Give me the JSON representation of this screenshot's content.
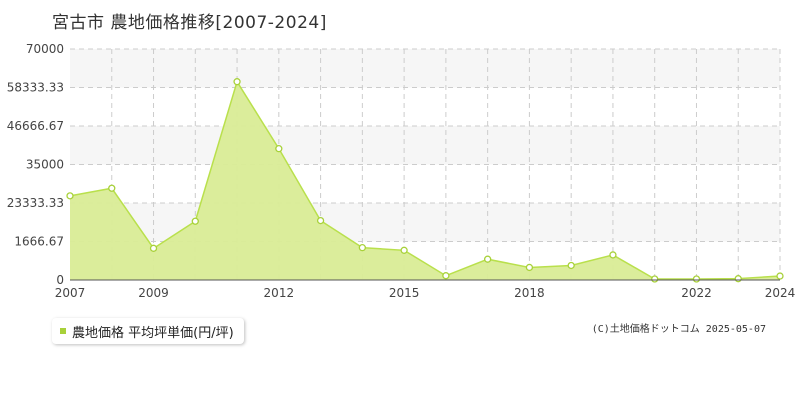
{
  "title": "宮古市  農地価格推移[2007-2024]",
  "legend": {
    "label": "農地価格 平均坪単価(円/坪)"
  },
  "copyright": "(C)土地価格ドットコム 2025-05-07",
  "colors": {
    "line": "#b9e04c",
    "fill": "#d9ec96",
    "marker": "#a8d13a",
    "grid": "#cccccc",
    "band": "#f6f6f6"
  },
  "chart_data": {
    "type": "area",
    "title": "宮古市  農地価格推移[2007-2024]",
    "xlabel": "",
    "ylabel": "",
    "x": [
      2007,
      2008,
      2009,
      2010,
      2011,
      2012,
      2013,
      2014,
      2015,
      2016,
      2017,
      2018,
      2019,
      2020,
      2021,
      2022,
      2023,
      2024
    ],
    "series": [
      {
        "name": "農地価格 平均坪単価(円/坪)",
        "values": [
          25500,
          27800,
          9600,
          17800,
          60100,
          39800,
          18000,
          9800,
          9000,
          1300,
          6300,
          3800,
          4400,
          7600,
          300,
          300,
          400,
          1200
        ]
      }
    ],
    "xticks": [
      "2007",
      "2009",
      "2012",
      "2015",
      "2018",
      "2022",
      "2024"
    ],
    "yticks": [
      "0",
      "1666.67",
      "23333.33",
      "35000",
      "46666.67",
      "58333.33",
      "70000"
    ],
    "ylim": [
      0,
      70000
    ],
    "xlim": [
      2007,
      2024
    ],
    "grid": true,
    "legend_position": "bottom-left"
  }
}
